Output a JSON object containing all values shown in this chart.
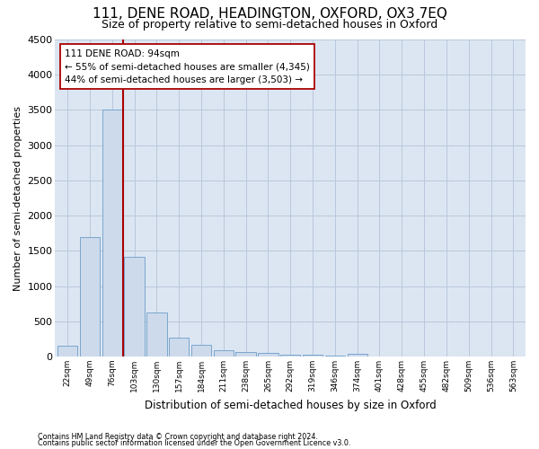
{
  "title": "111, DENE ROAD, HEADINGTON, OXFORD, OX3 7EQ",
  "subtitle": "Size of property relative to semi-detached houses in Oxford",
  "xlabel": "Distribution of semi-detached houses by size in Oxford",
  "ylabel": "Number of semi-detached properties",
  "bar_color": "#cddaeb",
  "bar_edge_color": "#6b9dc8",
  "bar_categories": [
    "22sqm",
    "49sqm",
    "76sqm",
    "103sqm",
    "130sqm",
    "157sqm",
    "184sqm",
    "211sqm",
    "238sqm",
    "265sqm",
    "292sqm",
    "319sqm",
    "346sqm",
    "374sqm",
    "401sqm",
    "428sqm",
    "455sqm",
    "482sqm",
    "509sqm",
    "536sqm",
    "563sqm"
  ],
  "bar_values": [
    150,
    1700,
    3500,
    1420,
    620,
    270,
    170,
    90,
    60,
    50,
    30,
    20,
    15,
    40,
    5,
    5,
    4,
    3,
    2,
    1,
    1
  ],
  "ylim": [
    0,
    4500
  ],
  "yticks": [
    0,
    500,
    1000,
    1500,
    2000,
    2500,
    3000,
    3500,
    4000,
    4500
  ],
  "property_label": "111 DENE ROAD: 94sqm",
  "pct_smaller": 55,
  "count_smaller": 4345,
  "pct_larger": 44,
  "count_larger": 3503,
  "vline_x": 2.5,
  "vline_color": "#aa0000",
  "annotation_box_color": "#ffffff",
  "annotation_box_edge": "#aa0000",
  "grid_color": "#b8c8dc",
  "background_color": "#dce6f2",
  "title_fontsize": 11,
  "subtitle_fontsize": 9,
  "footer_line1": "Contains HM Land Registry data © Crown copyright and database right 2024.",
  "footer_line2": "Contains public sector information licensed under the Open Government Licence v3.0."
}
